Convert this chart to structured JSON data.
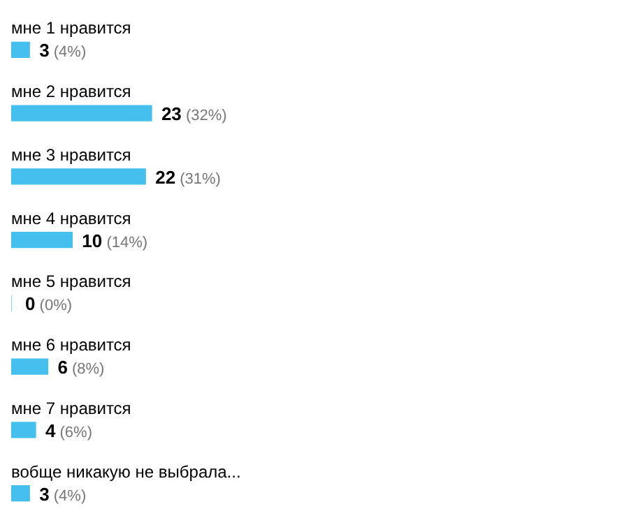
{
  "chart_data": {
    "type": "bar",
    "orientation": "horizontal",
    "categories": [
      "мне 1 нравится",
      "мне 2 нравится",
      "мне 3 нравится",
      "мне 4 нравится",
      "мне 5 нравится",
      "мне 6 нравится",
      "мне 7 нравится",
      "вобще никакую не выбрала..."
    ],
    "values": [
      3,
      23,
      22,
      10,
      0,
      6,
      4,
      3
    ],
    "value_labels": [
      "3 (4%)",
      "23 (32%)",
      "22 (31%)",
      "10 (14%)",
      "0 (0%)",
      "6 (8%)",
      "4 (6%)",
      "3 (4%)"
    ],
    "color": "#45bfee",
    "legend": false
  }
}
